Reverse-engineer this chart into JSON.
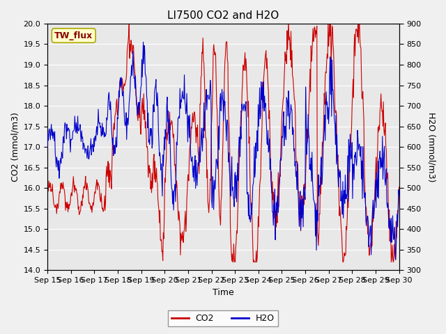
{
  "title": "LI7500 CO2 and H2O",
  "xlabel": "Time",
  "ylabel_left": "CO2 (mmol/m3)",
  "ylabel_right": "H2O (mmol/m3)",
  "ylim_left": [
    14.0,
    20.0
  ],
  "ylim_right": [
    300,
    900
  ],
  "yticks_left": [
    14.0,
    14.5,
    15.0,
    15.5,
    16.0,
    16.5,
    17.0,
    17.5,
    18.0,
    18.5,
    19.0,
    19.5,
    20.0
  ],
  "yticks_right": [
    300,
    350,
    400,
    450,
    500,
    550,
    600,
    650,
    700,
    750,
    800,
    850,
    900
  ],
  "xtick_labels": [
    "Sep 15",
    "Sep 16",
    "Sep 17",
    "Sep 18",
    "Sep 19",
    "Sep 20",
    "Sep 21",
    "Sep 22",
    "Sep 23",
    "Sep 24",
    "Sep 25",
    "Sep 26",
    "Sep 27",
    "Sep 28",
    "Sep 29",
    "Sep 30"
  ],
  "n_days": 15,
  "annotation_text": "TW_flux",
  "annotation_bg": "#ffffcc",
  "annotation_border": "#aaa800",
  "co2_color": "#cc0000",
  "h2o_color": "#0000cc",
  "plot_bg": "#e8e8e8",
  "grid_color": "#ffffff",
  "title_color": "#000000",
  "legend_co2": "CO2",
  "legend_h2o": "H2O",
  "fig_bg": "#f0f0f0"
}
